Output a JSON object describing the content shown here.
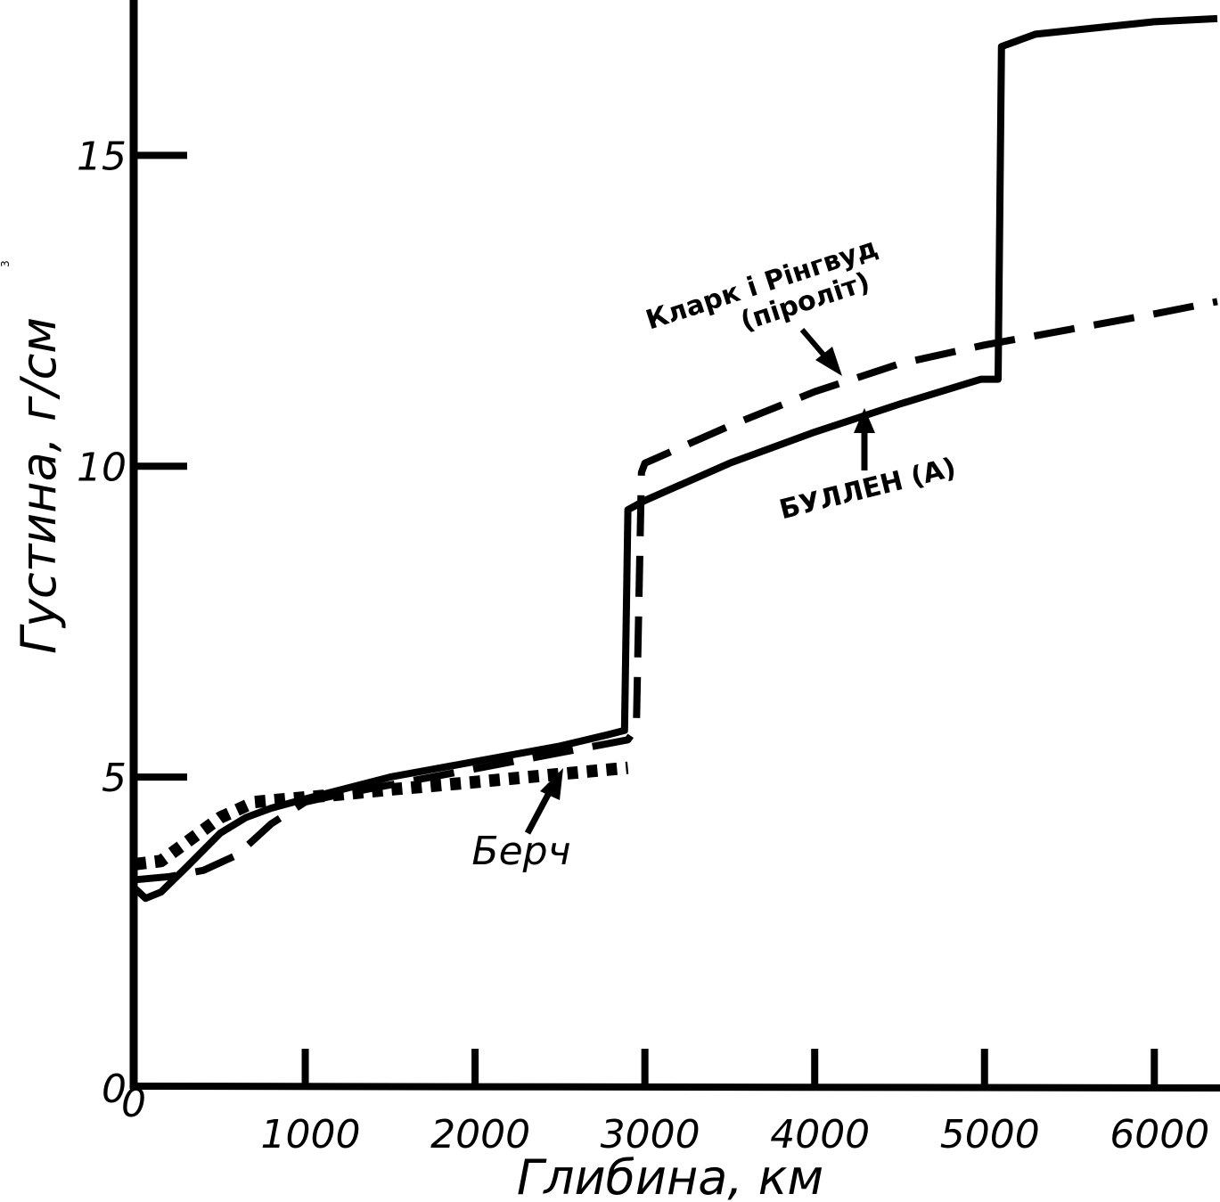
{
  "chart_data": {
    "type": "line",
    "title": "",
    "xlabel": "Глибина, км",
    "ylabel": "Густина, г/см",
    "ylabel_superscript": "3",
    "xlim": [
      0,
      6371
    ],
    "ylim": [
      0,
      17.5
    ],
    "x_ticks": [
      0,
      1000,
      2000,
      3000,
      4000,
      5000,
      6000
    ],
    "x_tick_labels": [
      "0",
      "1000",
      "2000",
      "3000",
      "4000",
      "5000",
      "6000"
    ],
    "y_ticks": [
      0,
      5,
      10,
      15
    ],
    "y_tick_labels": [
      "0",
      "5",
      "10",
      "15"
    ],
    "grid": false,
    "legend": "none",
    "series": [
      {
        "name": "БУЛЛЕН (А)",
        "style": "solid",
        "x": [
          0,
          60,
          150,
          300,
          500,
          650,
          800,
          1000,
          1500,
          2000,
          2500,
          2780,
          2880,
          2900,
          3000,
          3500,
          4000,
          4500,
          4980,
          5080,
          5100,
          5300,
          6000,
          6371
        ],
        "y": [
          3.2,
          3.05,
          3.15,
          3.55,
          4.1,
          4.35,
          4.5,
          4.65,
          5.0,
          5.25,
          5.5,
          5.68,
          5.75,
          9.3,
          9.45,
          10.05,
          10.55,
          11.0,
          11.4,
          11.4,
          16.75,
          16.95,
          17.15,
          17.2
        ]
      },
      {
        "name": "Кларк і Рінгвуд (піроліт)",
        "style": "dashed",
        "x": [
          0,
          200,
          400,
          600,
          800,
          1000,
          1200,
          2900,
          2950,
          2980,
          3000,
          3500,
          4000,
          4500,
          5000,
          5500,
          6000,
          6371
        ],
        "y": [
          3.35,
          3.4,
          3.5,
          3.75,
          4.25,
          4.6,
          4.72,
          5.6,
          5.8,
          9.9,
          10.05,
          10.65,
          11.2,
          11.65,
          11.95,
          12.2,
          12.45,
          12.65
        ]
      },
      {
        "name": "Берч",
        "style": "dotted",
        "x": [
          0,
          150,
          300,
          500,
          700,
          900,
          1200,
          1500,
          2000,
          2500,
          2900
        ],
        "y": [
          3.6,
          3.65,
          3.95,
          4.35,
          4.6,
          4.65,
          4.72,
          4.8,
          4.92,
          5.05,
          5.15
        ]
      }
    ],
    "annotations": [
      {
        "text": "Кларк і Рінгвуд",
        "lines": [
          "Кларк і Рінгвуд",
          "(піроліт)"
        ],
        "target_series": "Кларк і Рінгвуд (піроліт)"
      },
      {
        "text": "БУЛЛЕН (А)",
        "target_series": "БУЛЛЕН (А)"
      },
      {
        "text": "Берч",
        "target_series": "Берч"
      }
    ]
  }
}
